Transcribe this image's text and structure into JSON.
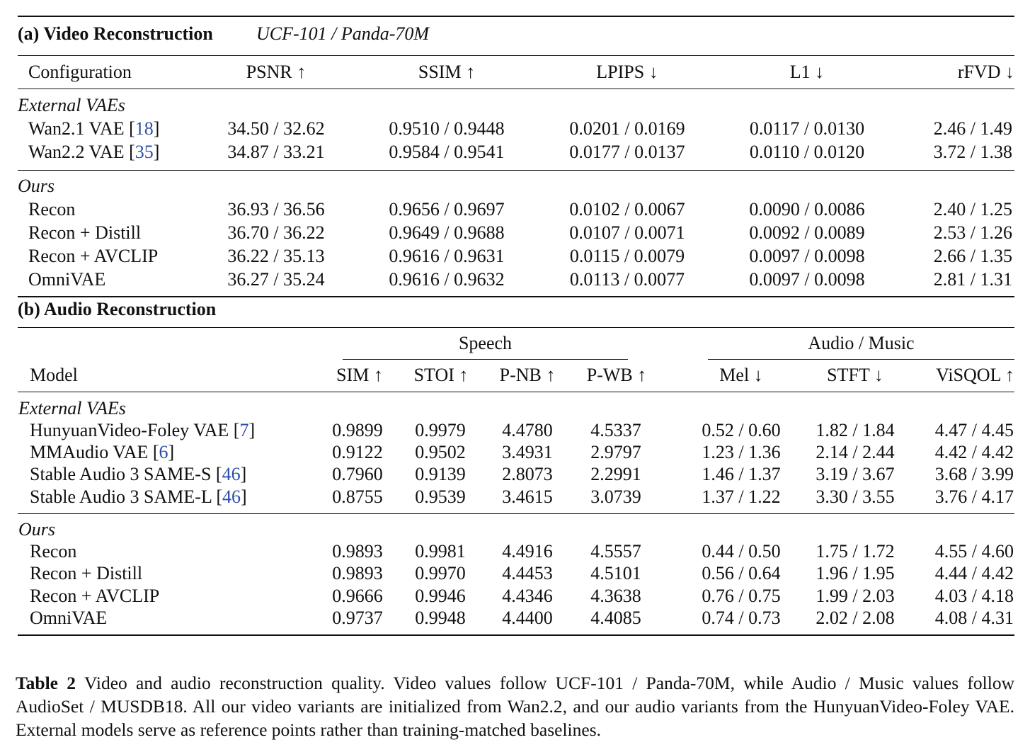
{
  "video": {
    "title": "(a) Video Reconstruction",
    "subtitle": "UCF-101 / Panda-70M",
    "headers": [
      "Configuration",
      "PSNR ↑",
      "SSIM ↑",
      "LPIPS ↓",
      "L1 ↓",
      "rFVD ↓"
    ],
    "groups": [
      {
        "label": "External VAEs",
        "rows": [
          {
            "name": "Wan2.1 VAE [",
            "cite": "18",
            "close": "]",
            "values": [
              "34.50 / 32.62",
              "0.9510 / 0.9448",
              "0.0201 / 0.0169",
              "0.0117 / 0.0130",
              "2.46 / 1.49"
            ]
          },
          {
            "name": "Wan2.2 VAE [",
            "cite": "35",
            "close": "]",
            "values": [
              "34.87 / 33.21",
              "0.9584 / 0.9541",
              "0.0177 / 0.0137",
              "0.0110 / 0.0120",
              "3.72 / 1.38"
            ]
          }
        ]
      },
      {
        "label": "Ours",
        "rows": [
          {
            "name": "Recon",
            "values": [
              "36.93 / 36.56",
              "0.9656 / 0.9697",
              "0.0102 / 0.0067",
              "0.0090 / 0.0086",
              "2.40 / 1.25"
            ]
          },
          {
            "name": "Recon + Distill",
            "values": [
              "36.70 / 36.22",
              "0.9649 / 0.9688",
              "0.0107 / 0.0071",
              "0.0092 / 0.0089",
              "2.53 / 1.26"
            ]
          },
          {
            "name": "Recon + AVCLIP",
            "values": [
              "36.22 / 35.13",
              "0.9616 / 0.9631",
              "0.0115 / 0.0079",
              "0.0097 / 0.0098",
              "2.66 / 1.35"
            ]
          },
          {
            "name": "OmniVAE",
            "values": [
              "36.27 / 35.24",
              "0.9616 / 0.9632",
              "0.0113 / 0.0077",
              "0.0097 / 0.0098",
              "2.81 / 1.31"
            ]
          }
        ]
      }
    ]
  },
  "audio": {
    "title": "(b) Audio Reconstruction",
    "group_headers": {
      "speech": "Speech",
      "audio_music": "Audio / Music"
    },
    "headers": [
      "Model",
      "SIM ↑",
      "STOI ↑",
      "P-NB ↑",
      "P-WB ↑",
      "Mel ↓",
      "STFT ↓",
      "ViSQOL ↑"
    ],
    "groups": [
      {
        "label": "External VAEs",
        "rows": [
          {
            "name": "HunyuanVideo-Foley VAE [",
            "cite": "7",
            "close": "]",
            "values": [
              "0.9899",
              "0.9979",
              "4.4780",
              "4.5337",
              "0.52 / 0.60",
              "1.82 / 1.84",
              "4.47 / 4.45"
            ]
          },
          {
            "name": "MMAudio VAE [",
            "cite": "6",
            "close": "]",
            "values": [
              "0.9122",
              "0.9502",
              "3.4931",
              "2.9797",
              "1.23 / 1.36",
              "2.14 / 2.44",
              "4.42 / 4.42"
            ]
          },
          {
            "name": "Stable Audio 3 SAME-S [",
            "cite": "46",
            "close": "]",
            "values": [
              "0.7960",
              "0.9139",
              "2.8073",
              "2.2991",
              "1.46 / 1.37",
              "3.19 / 3.67",
              "3.68 / 3.99"
            ]
          },
          {
            "name": "Stable Audio 3 SAME-L [",
            "cite": "46",
            "close": "]",
            "values": [
              "0.8755",
              "0.9539",
              "3.4615",
              "3.0739",
              "1.37 / 1.22",
              "3.30 / 3.55",
              "3.76 / 4.17"
            ]
          }
        ]
      },
      {
        "label": "Ours",
        "rows": [
          {
            "name": "Recon",
            "values": [
              "0.9893",
              "0.9981",
              "4.4916",
              "4.5557",
              "0.44 / 0.50",
              "1.75 / 1.72",
              "4.55 / 4.60"
            ]
          },
          {
            "name": "Recon + Distill",
            "values": [
              "0.9893",
              "0.9970",
              "4.4453",
              "4.5101",
              "0.56 / 0.64",
              "1.96 / 1.95",
              "4.44 / 4.42"
            ]
          },
          {
            "name": "Recon + AVCLIP",
            "values": [
              "0.9666",
              "0.9946",
              "4.4346",
              "4.3638",
              "0.76 / 0.75",
              "1.99 / 2.03",
              "4.03 / 4.18"
            ]
          },
          {
            "name": "OmniVAE",
            "values": [
              "0.9737",
              "0.9948",
              "4.4400",
              "4.4085",
              "0.74 / 0.73",
              "2.02 / 2.08",
              "4.08 / 4.31"
            ]
          }
        ]
      }
    ]
  },
  "caption": {
    "label": "Table 2",
    "text": "Video and audio reconstruction quality. Video values follow UCF-101 / Panda-70M, while Audio / Music values follow AudioSet / MUSDB18. All our video variants are initialized from Wan2.2, and our audio variants from the HunyuanVideo-Foley VAE. External models serve as reference points rather than training-matched baselines."
  }
}
